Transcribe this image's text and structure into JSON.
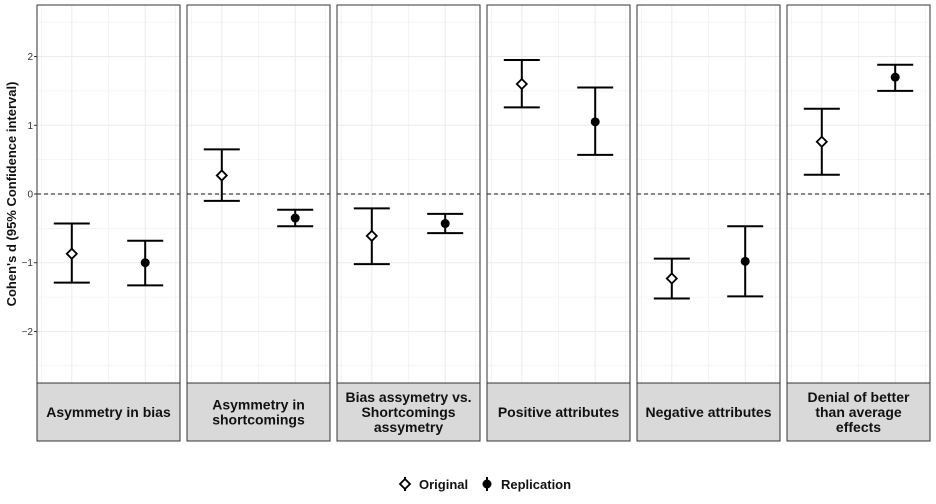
{
  "chart_data": {
    "type": "scatter",
    "ylabel": "Cohen's d (95% Confidence interval)",
    "ylim": [
      -2.75,
      2.75
    ],
    "yticks": [
      -2,
      -1,
      0,
      1,
      2
    ],
    "yticklabels": [
      "−2",
      "−1",
      "0",
      "1",
      "2"
    ],
    "reference_line": 0,
    "grid": true,
    "legend": {
      "position": "bottom",
      "entries": [
        {
          "label": "Original",
          "marker": "open-diamond"
        },
        {
          "label": "Replication",
          "marker": "filled-circle"
        }
      ]
    },
    "panels": [
      {
        "label_lines": [
          "Asymmetry in bias"
        ],
        "points": [
          {
            "series": "Original",
            "y": -0.87,
            "lo": -1.29,
            "hi": -0.43
          },
          {
            "series": "Replication",
            "y": -1.0,
            "lo": -1.33,
            "hi": -0.68
          }
        ]
      },
      {
        "label_lines": [
          "Asymmetry in",
          "shortcomings"
        ],
        "points": [
          {
            "series": "Original",
            "y": 0.27,
            "lo": -0.1,
            "hi": 0.65
          },
          {
            "series": "Replication",
            "y": -0.35,
            "lo": -0.47,
            "hi": -0.23
          }
        ]
      },
      {
        "label_lines": [
          "Bias assymetry vs.",
          "Shortcomings",
          "assymetry"
        ],
        "points": [
          {
            "series": "Original",
            "y": -0.61,
            "lo": -1.02,
            "hi": -0.21
          },
          {
            "series": "Replication",
            "y": -0.43,
            "lo": -0.57,
            "hi": -0.29
          }
        ]
      },
      {
        "label_lines": [
          "Positive attributes"
        ],
        "points": [
          {
            "series": "Original",
            "y": 1.6,
            "lo": 1.26,
            "hi": 1.95
          },
          {
            "series": "Replication",
            "y": 1.05,
            "lo": 0.57,
            "hi": 1.55
          }
        ]
      },
      {
        "label_lines": [
          "Negative attributes"
        ],
        "points": [
          {
            "series": "Original",
            "y": -1.23,
            "lo": -1.52,
            "hi": -0.94
          },
          {
            "series": "Replication",
            "y": -0.98,
            "lo": -1.49,
            "hi": -0.47
          }
        ]
      },
      {
        "label_lines": [
          "Denial of better",
          "than average",
          "effects"
        ],
        "points": [
          {
            "series": "Original",
            "y": 0.76,
            "lo": 0.28,
            "hi": 1.24
          },
          {
            "series": "Replication",
            "y": 1.7,
            "lo": 1.5,
            "hi": 1.88
          }
        ]
      }
    ]
  }
}
